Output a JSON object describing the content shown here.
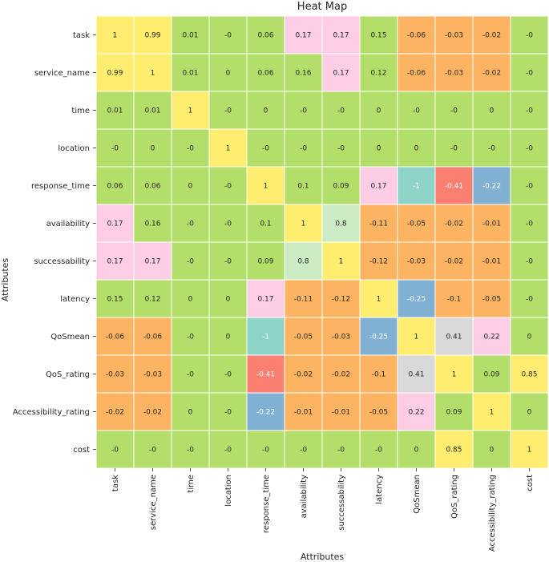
{
  "chart_data": {
    "type": "heatmap",
    "title": "Heat Map",
    "xlabel": "Attributes",
    "ylabel": "Attributes",
    "categories": [
      "task",
      "service_name",
      "time",
      "location",
      "response_time",
      "availability",
      "successability",
      "latency",
      "QoSmean",
      "QoS_rating",
      "Accessibility_rating",
      "cost"
    ],
    "matrix": [
      [
        "1",
        "0.99",
        "0.01",
        "-0",
        "0.06",
        "0.17",
        "0.17",
        "0.15",
        "-0.06",
        "-0.03",
        "-0.02",
        "-0"
      ],
      [
        "0.99",
        "1",
        "0.01",
        "0",
        "0.06",
        "0.16",
        "0.17",
        "0.12",
        "-0.06",
        "-0.03",
        "-0.02",
        "-0"
      ],
      [
        "0.01",
        "0.01",
        "1",
        "-0",
        "0",
        "-0",
        "-0",
        "0",
        "-0",
        "-0",
        "0",
        "-0"
      ],
      [
        "-0",
        "0",
        "-0",
        "1",
        "-0",
        "-0",
        "-0",
        "0",
        "0",
        "-0",
        "-0",
        "-0"
      ],
      [
        "0.06",
        "0.06",
        "0",
        "-0",
        "1",
        "0.1",
        "0.09",
        "0.17",
        "-1",
        "-0.41",
        "-0.22",
        "-0"
      ],
      [
        "0.17",
        "0.16",
        "-0",
        "-0",
        "0.1",
        "1",
        "0.8",
        "-0.11",
        "-0.05",
        "-0.02",
        "-0.01",
        "-0"
      ],
      [
        "0.17",
        "0.17",
        "-0",
        "-0",
        "0.09",
        "0.8",
        "1",
        "-0.12",
        "-0.03",
        "-0.02",
        "-0.01",
        "-0"
      ],
      [
        "0.15",
        "0.12",
        "0",
        "0",
        "0.17",
        "-0.11",
        "-0.12",
        "1",
        "-0.25",
        "-0.1",
        "-0.05",
        "-0"
      ],
      [
        "-0.06",
        "-0.06",
        "-0",
        "0",
        "-1",
        "-0.05",
        "-0.03",
        "-0.25",
        "1",
        "0.41",
        "0.22",
        "0"
      ],
      [
        "-0.03",
        "-0.03",
        "-0",
        "-0",
        "-0.41",
        "-0.02",
        "-0.02",
        "-0.1",
        "0.41",
        "1",
        "0.09",
        "0.85"
      ],
      [
        "-0.02",
        "-0.02",
        "0",
        "-0",
        "-0.22",
        "-0.01",
        "-0.01",
        "-0.05",
        "0.22",
        "0.09",
        "1",
        "0"
      ],
      [
        "-0",
        "-0",
        "-0",
        "-0",
        "-0",
        "-0",
        "-0",
        "-0",
        "0",
        "0.85",
        "0",
        "1"
      ]
    ],
    "colormap": "Set3",
    "palette": {
      "yellow": "#FFED6F",
      "green": "#B3DE69",
      "pink": "#FCCDE5",
      "orange": "#FDB462",
      "teal": "#8DD3C7",
      "blue": "#80B1D3",
      "red": "#FB8072",
      "lightgreen": "#CCEBC5",
      "grey": "#D9D9D9"
    },
    "cell_colors": [
      [
        "yellow",
        "yellow",
        "green",
        "green",
        "green",
        "pink",
        "pink",
        "green",
        "orange",
        "orange",
        "orange",
        "green"
      ],
      [
        "yellow",
        "yellow",
        "green",
        "green",
        "green",
        "green",
        "pink",
        "green",
        "orange",
        "orange",
        "orange",
        "green"
      ],
      [
        "green",
        "green",
        "yellow",
        "green",
        "green",
        "green",
        "green",
        "green",
        "green",
        "green",
        "green",
        "green"
      ],
      [
        "green",
        "green",
        "green",
        "yellow",
        "green",
        "green",
        "green",
        "green",
        "green",
        "green",
        "green",
        "green"
      ],
      [
        "green",
        "green",
        "green",
        "green",
        "yellow",
        "green",
        "green",
        "pink",
        "teal",
        "red",
        "blue",
        "green"
      ],
      [
        "pink",
        "green",
        "green",
        "green",
        "green",
        "yellow",
        "lightgreen",
        "orange",
        "orange",
        "orange",
        "orange",
        "green"
      ],
      [
        "pink",
        "pink",
        "green",
        "green",
        "green",
        "lightgreen",
        "yellow",
        "orange",
        "orange",
        "orange",
        "orange",
        "green"
      ],
      [
        "green",
        "green",
        "green",
        "green",
        "pink",
        "orange",
        "orange",
        "yellow",
        "blue",
        "orange",
        "orange",
        "green"
      ],
      [
        "orange",
        "orange",
        "green",
        "green",
        "teal",
        "orange",
        "orange",
        "blue",
        "yellow",
        "grey",
        "pink",
        "green"
      ],
      [
        "orange",
        "orange",
        "green",
        "green",
        "red",
        "orange",
        "orange",
        "orange",
        "grey",
        "yellow",
        "green",
        "yellow"
      ],
      [
        "orange",
        "orange",
        "green",
        "green",
        "blue",
        "orange",
        "orange",
        "orange",
        "pink",
        "green",
        "yellow",
        "green"
      ],
      [
        "green",
        "green",
        "green",
        "green",
        "green",
        "green",
        "green",
        "green",
        "green",
        "yellow",
        "green",
        "yellow"
      ]
    ],
    "light_text_colors": [
      "teal",
      "blue",
      "red"
    ],
    "text_color_dark": "#262626",
    "text_color_light": "#ffffff",
    "grid_line_color": "#ffffff"
  }
}
